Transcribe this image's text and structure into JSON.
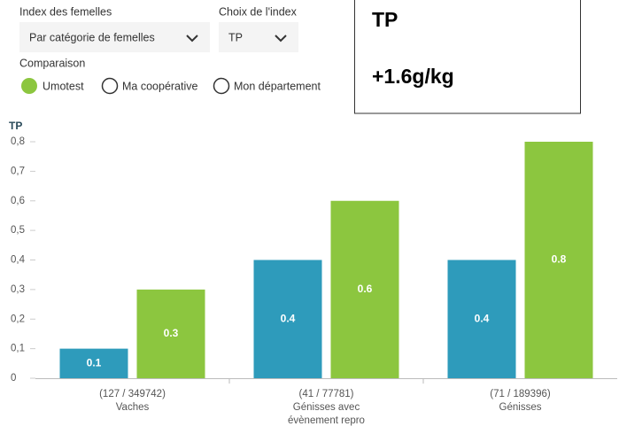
{
  "controls": {
    "index_label": "Index des femelles",
    "index_value": "Par catégorie de femelles",
    "choice_label": "Choix de l'index",
    "choice_value": "TP",
    "comparison_label": "Comparaison",
    "options": [
      "Umotest",
      "Ma coopérative",
      "Mon département"
    ]
  },
  "info_box": {
    "title": "TP",
    "value": "+1.6g/kg"
  },
  "chart_data": {
    "type": "bar",
    "y_label": "TP",
    "categories": [
      [
        "(127 / 349742)",
        "Vaches"
      ],
      [
        "(41 / 77781)",
        "Génisses avec",
        "évènement repro"
      ],
      [
        "(71 / 189396)",
        "Génisses"
      ]
    ],
    "series": [
      {
        "color": "#2e9bbb",
        "values": [
          0.1,
          0.4,
          0.4
        ]
      },
      {
        "color": "#8cc63f",
        "values": [
          0.3,
          0.6,
          0.8
        ]
      }
    ],
    "ylim": [
      0,
      0.8
    ],
    "yticks": [
      0,
      {
        "value": 0.1,
        "label": "0,1"
      },
      {
        "value": 0.2,
        "label": "0,2"
      },
      {
        "value": 0.3,
        "label": "0,3"
      },
      {
        "value": 0.4,
        "label": "0,4"
      },
      {
        "value": 0.5,
        "label": "0,5"
      },
      {
        "value": 0.6,
        "label": "0,6"
      },
      {
        "value": 0.7,
        "label": "0,7"
      },
      {
        "value": 0.8,
        "label": "0,8"
      }
    ]
  }
}
